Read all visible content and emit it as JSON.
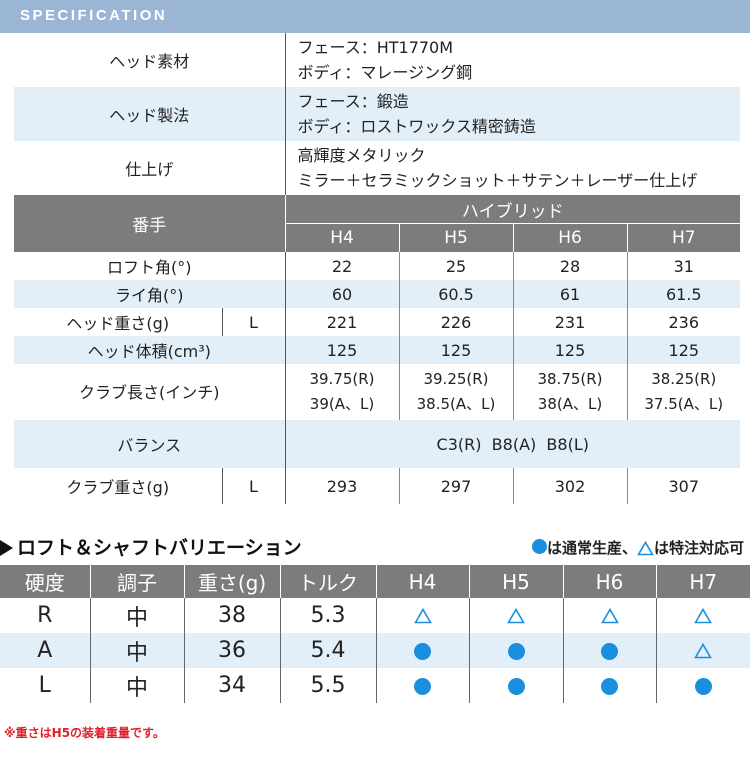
{
  "header": {
    "title": "SPECIFICATION"
  },
  "spec": {
    "material_label": "ヘッド素材",
    "material_lines": [
      "フェース：HT1770M",
      "ボディ：マレージング鋼"
    ],
    "method_label": "ヘッド製法",
    "method_lines": [
      "フェース：鍛造",
      "ボディ：ロストワックス精密鋳造"
    ],
    "finish_label": "仕上げ",
    "finish_lines": [
      "高輝度メタリック",
      "ミラー＋セラミックショット＋サテン＋レーザー仕上げ"
    ],
    "number_label": "番手",
    "type_label": "ハイブリッド",
    "heads": [
      "H4",
      "H5",
      "H6",
      "H7"
    ],
    "rows": {
      "loft_label": "ロフト角(°)",
      "loft": [
        "22",
        "25",
        "28",
        "31"
      ],
      "lie_label": "ライ角(°)",
      "lie": [
        "60",
        "60.5",
        "61",
        "61.5"
      ],
      "weight_label": "ヘッド重さ(g)",
      "weight_flex": "L",
      "weight": [
        "221",
        "226",
        "231",
        "236"
      ],
      "volume_label": "ヘッド体積(cm³)",
      "volume": [
        "125",
        "125",
        "125",
        "125"
      ],
      "length_label": "クラブ長さ(インチ)",
      "length_line1": [
        "39.75(R)",
        "39.25(R)",
        "38.75(R)",
        "38.25(R)"
      ],
      "length_line2": [
        "39(A、L)",
        "38.5(A、L)",
        "38(A、L)",
        "37.5(A、L)"
      ],
      "balance_label": "バランス",
      "balance": "C3(R)  B8(A)  B8(L)",
      "club_weight_label": "クラブ重さ(g)",
      "club_weight_flex": "L",
      "club_weight": [
        "293",
        "297",
        "302",
        "307"
      ]
    }
  },
  "variation": {
    "title": "ロフト＆シャフトバリエーション",
    "legend_standard": "は通常生産、",
    "legend_special": "は特注対応可",
    "headers": [
      "硬度",
      "調子",
      "重さ(g)",
      "トルク",
      "H4",
      "H5",
      "H6",
      "H7"
    ],
    "rows": [
      {
        "flex": "R",
        "kick": "中",
        "weight": "38",
        "torque": "5.3",
        "avail": [
          "special",
          "special",
          "special",
          "special"
        ]
      },
      {
        "flex": "A",
        "kick": "中",
        "weight": "36",
        "torque": "5.4",
        "avail": [
          "standard",
          "standard",
          "standard",
          "special"
        ]
      },
      {
        "flex": "L",
        "kick": "中",
        "weight": "34",
        "torque": "5.5",
        "avail": [
          "standard",
          "standard",
          "standard",
          "standard"
        ]
      }
    ],
    "colors": {
      "standard": "#1a8fe0",
      "special": "#1a8fe0"
    }
  },
  "note": "※重さはH5の装着重量です。"
}
